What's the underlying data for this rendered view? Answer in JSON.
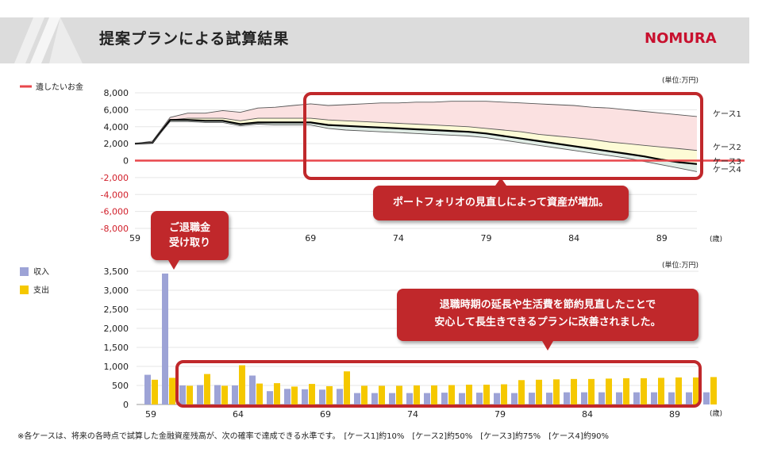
{
  "header": {
    "title": "提案プランによる試算結果",
    "logo_text": "NOMURA"
  },
  "colors": {
    "brand": "#c8102e",
    "callout": "#c0282b",
    "income": "#9da3d6",
    "expense": "#f5c800",
    "wish_line": "#e8474c",
    "case1_band": "#fbe1e1",
    "case2_band": "#fdfbd6",
    "case3_band": "#e1ede6",
    "highlight_box": "#c0282b"
  },
  "callouts": {
    "top_note": "ポートフォリオの見直しによって資産が増加。",
    "retirement_pay_line1": "ご退職金",
    "retirement_pay_line2": "受け取り",
    "bottom_note_line1": "退職時期の延長や生活費を節約見直したことで",
    "bottom_note_line2": "安心して長生きできるプランに改善されました。"
  },
  "footnote": "※各ケースは、将来の各時点で試算した金融資産残高が、次の確率で達成できる水準です。　[ケース1]約10%　[ケース2]約50%　[ケース3]約75%　[ケース4]約90%",
  "chart_data": [
    {
      "type": "line",
      "unit_label": "(単位:万円)",
      "x_unit": "(歳)",
      "legend": [
        {
          "name": "遺したいお金",
          "color": "#e8474c"
        }
      ],
      "x_ticks": [
        59,
        64,
        69,
        74,
        79,
        84,
        89
      ],
      "y_ticks": [
        "8,000",
        "6,000",
        "4,000",
        "2,000",
        "0",
        "-2,000",
        "-4,000",
        "-6,000",
        "-8,000"
      ],
      "xlim": [
        59,
        91
      ],
      "ylim": [
        -8000,
        8000
      ],
      "x": [
        59,
        60,
        61,
        62,
        63,
        64,
        65,
        66,
        67,
        68,
        69,
        70,
        71,
        72,
        73,
        74,
        75,
        76,
        77,
        78,
        79,
        80,
        81,
        82,
        83,
        84,
        85,
        86,
        87,
        88,
        89,
        90,
        91
      ],
      "series": [
        {
          "name": "ケース1",
          "color": "#555555",
          "values": [
            2000,
            2300,
            5100,
            5600,
            5600,
            5900,
            5700,
            6200,
            6300,
            6500,
            6700,
            6500,
            6600,
            6700,
            6800,
            6800,
            6900,
            6900,
            7000,
            7000,
            7000,
            6900,
            6800,
            6700,
            6600,
            6500,
            6300,
            6200,
            6000,
            5800,
            5600,
            5400,
            5200
          ]
        },
        {
          "name": "ケース2",
          "color": "#555555",
          "values": [
            2000,
            2100,
            4800,
            5000,
            5000,
            5000,
            4700,
            5000,
            5000,
            5000,
            5000,
            4800,
            4700,
            4600,
            4500,
            4400,
            4300,
            4200,
            4100,
            4000,
            3800,
            3600,
            3400,
            3100,
            2900,
            2700,
            2500,
            2200,
            2000,
            1800,
            1600,
            1400,
            1200
          ]
        },
        {
          "name": "ケース3",
          "color": "#000000",
          "values": [
            2000,
            2100,
            4800,
            4800,
            4700,
            4700,
            4300,
            4500,
            4500,
            4500,
            4500,
            4200,
            4100,
            4000,
            3900,
            3800,
            3700,
            3600,
            3500,
            3400,
            3200,
            2900,
            2600,
            2300,
            2000,
            1700,
            1400,
            1100,
            800,
            500,
            100,
            -200,
            -400
          ]
        },
        {
          "name": "ケース4",
          "color": "#555555",
          "values": [
            2000,
            2100,
            4600,
            4600,
            4500,
            4500,
            4100,
            4300,
            4200,
            4200,
            4200,
            3800,
            3600,
            3500,
            3400,
            3300,
            3200,
            3100,
            3000,
            2900,
            2700,
            2400,
            2100,
            1800,
            1500,
            1200,
            900,
            600,
            300,
            -100,
            -500,
            -900,
            -1300
          ]
        }
      ],
      "reference_line": {
        "name": "遺したいお金",
        "value": 0
      }
    },
    {
      "type": "bar",
      "unit_label": "(単位:万円)",
      "x_unit": "(歳)",
      "x_ticks": [
        59,
        64,
        69,
        74,
        79,
        84,
        89
      ],
      "y_ticks": [
        "3,500",
        "3,000",
        "2,500",
        "2,000",
        "1,500",
        "1,000",
        "500",
        "0"
      ],
      "ylim": [
        0,
        3500
      ],
      "categories": [
        59,
        60,
        61,
        62,
        63,
        64,
        65,
        66,
        67,
        68,
        69,
        70,
        71,
        72,
        73,
        74,
        75,
        76,
        77,
        78,
        79,
        80,
        81,
        82,
        83,
        84,
        85,
        86,
        87,
        88,
        89,
        90,
        91
      ],
      "series": [
        {
          "name": "収入",
          "color": "#9da3d6",
          "values": [
            780,
            3440,
            500,
            510,
            510,
            500,
            760,
            350,
            410,
            400,
            390,
            410,
            300,
            300,
            300,
            300,
            300,
            310,
            300,
            310,
            300,
            300,
            310,
            310,
            320,
            320,
            320,
            320,
            320,
            320,
            320,
            320,
            320
          ]
        },
        {
          "name": "支出",
          "color": "#f5c800",
          "values": [
            650,
            700,
            490,
            800,
            490,
            1030,
            550,
            560,
            470,
            540,
            480,
            870,
            490,
            490,
            490,
            500,
            500,
            510,
            520,
            520,
            530,
            640,
            650,
            660,
            670,
            670,
            680,
            690,
            690,
            700,
            710,
            710,
            720
          ]
        }
      ]
    }
  ]
}
